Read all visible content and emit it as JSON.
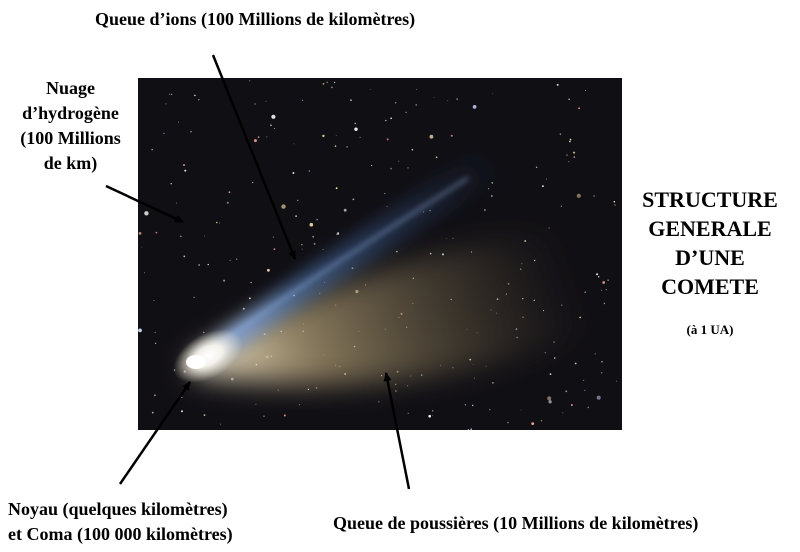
{
  "labels": {
    "ion_tail": "Queue d’ions (100 Millions de kilomètres)",
    "hydrogen": [
      "Nuage",
      "d’hydrogène",
      "(100 Millions",
      "de km)"
    ],
    "nucleus": [
      "Noyau (quelques kilomètres)",
      "et Coma (100 000 kilomètres)"
    ],
    "dust_tail": "Queue de poussières (10 Millions de kilomètres)"
  },
  "title": [
    "STRUCTURE",
    "GENERALE",
    "D’UNE",
    "COMETE"
  ],
  "subtitle": "(à 1 UA)",
  "colors": {
    "sky": "#100f14",
    "ion_tail": "#5a8cd2",
    "dust_tail": "#d7c08c",
    "coma": "#fffaf0",
    "arrow": "#000000"
  }
}
